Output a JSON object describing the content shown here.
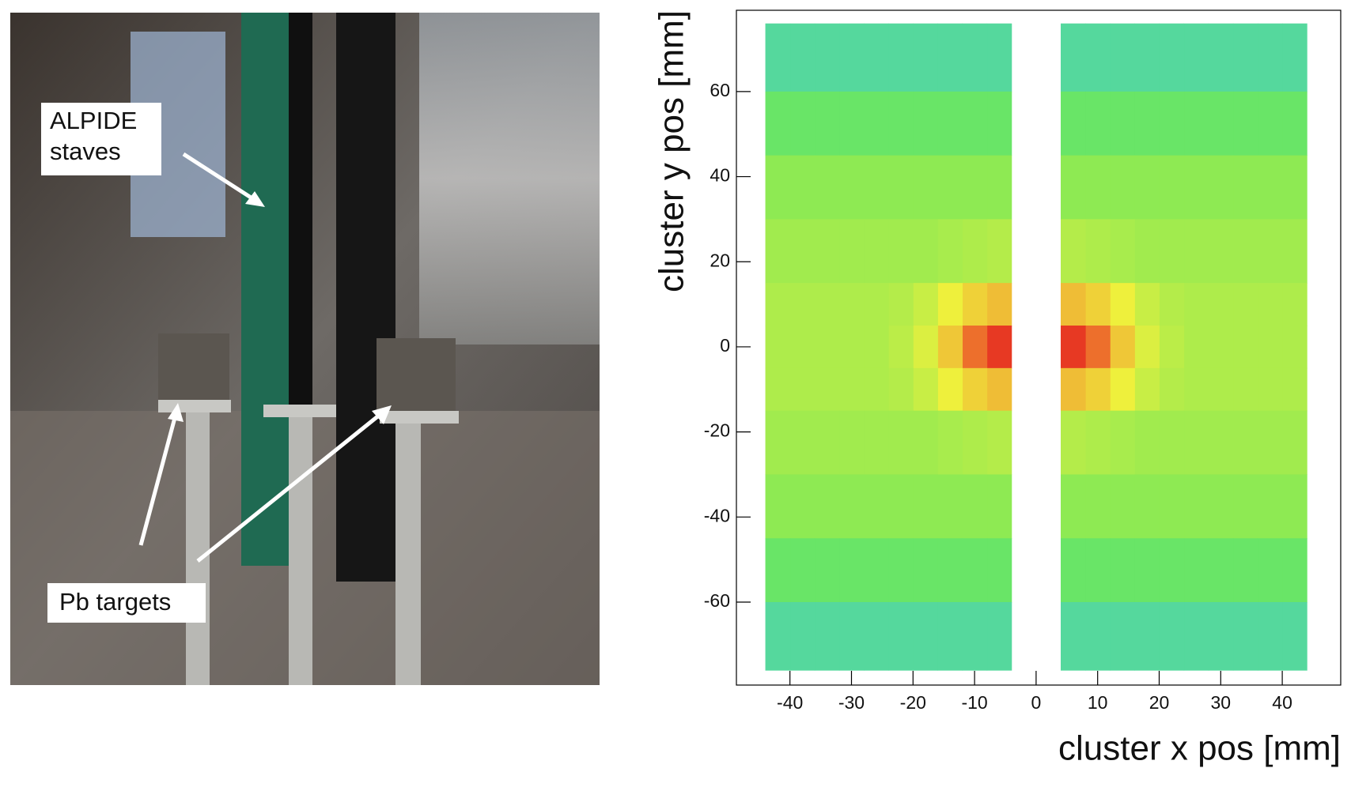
{
  "photo": {
    "labels": [
      {
        "lines": [
          "ALPIDE",
          "staves"
        ]
      },
      {
        "lines": [
          "Pb  targets"
        ]
      }
    ]
  },
  "chart_data": {
    "type": "heatmap",
    "xlabel": "cluster x pos [mm]",
    "ylabel": "cluster y pos [mm]",
    "xlim": [
      -48.7,
      49.5
    ],
    "ylim": [
      -79.5,
      79.1
    ],
    "xticks": [
      -40,
      -30,
      -20,
      -10,
      0,
      10,
      20,
      30,
      40
    ],
    "yticks": [
      -60,
      -40,
      -20,
      0,
      20,
      40,
      60
    ],
    "xbins": [
      -44,
      -40,
      -36,
      -32,
      -28,
      -24,
      -20,
      -16,
      -12,
      -8,
      -4,
      0,
      4,
      8,
      12,
      16,
      20,
      24,
      28,
      32,
      36,
      40,
      44
    ],
    "ybins": [
      -76,
      -60,
      -45,
      -30,
      -15,
      -5,
      5,
      15,
      30,
      45,
      60,
      76
    ],
    "zlim": [
      0,
      1
    ],
    "colormap": [
      "#2a3cd8",
      "#3cc8e0",
      "#6ee85a",
      "#eef03c",
      "#f08a30",
      "#e41e1e"
    ],
    "values": [
      [
        0.3,
        0.3,
        0.3,
        0.3,
        0.3,
        0.3,
        0.3,
        0.3,
        0.3,
        0.3,
        null,
        null,
        0.3,
        0.3,
        0.3,
        0.3,
        0.3,
        0.3,
        0.3,
        0.3,
        0.3,
        0.3
      ],
      [
        0.38,
        0.38,
        0.38,
        0.38,
        0.38,
        0.38,
        0.38,
        0.38,
        0.38,
        0.38,
        null,
        null,
        0.38,
        0.38,
        0.38,
        0.38,
        0.38,
        0.38,
        0.38,
        0.38,
        0.38,
        0.38
      ],
      [
        0.45,
        0.45,
        0.45,
        0.45,
        0.45,
        0.45,
        0.45,
        0.45,
        0.45,
        0.45,
        null,
        null,
        0.45,
        0.45,
        0.45,
        0.45,
        0.45,
        0.45,
        0.45,
        0.45,
        0.45,
        0.45
      ],
      [
        0.48,
        0.48,
        0.48,
        0.48,
        0.48,
        0.48,
        0.48,
        0.49,
        0.5,
        0.51,
        null,
        null,
        0.51,
        0.5,
        0.49,
        0.48,
        0.48,
        0.48,
        0.48,
        0.48,
        0.48,
        0.48
      ],
      [
        0.5,
        0.5,
        0.5,
        0.5,
        0.5,
        0.51,
        0.54,
        0.6,
        0.66,
        0.7,
        null,
        null,
        0.7,
        0.66,
        0.6,
        0.54,
        0.51,
        0.5,
        0.5,
        0.5,
        0.5,
        0.5
      ],
      [
        0.5,
        0.5,
        0.5,
        0.5,
        0.5,
        0.52,
        0.57,
        0.68,
        0.85,
        0.95,
        null,
        null,
        0.95,
        0.85,
        0.68,
        0.57,
        0.52,
        0.5,
        0.5,
        0.5,
        0.5,
        0.5
      ],
      [
        0.5,
        0.5,
        0.5,
        0.5,
        0.5,
        0.51,
        0.54,
        0.6,
        0.66,
        0.7,
        null,
        null,
        0.7,
        0.66,
        0.6,
        0.54,
        0.51,
        0.5,
        0.5,
        0.5,
        0.5,
        0.5
      ],
      [
        0.48,
        0.48,
        0.48,
        0.48,
        0.48,
        0.48,
        0.48,
        0.49,
        0.5,
        0.51,
        null,
        null,
        0.51,
        0.5,
        0.49,
        0.48,
        0.48,
        0.48,
        0.48,
        0.48,
        0.48,
        0.48
      ],
      [
        0.45,
        0.45,
        0.45,
        0.45,
        0.45,
        0.45,
        0.45,
        0.45,
        0.45,
        0.45,
        null,
        null,
        0.45,
        0.45,
        0.45,
        0.45,
        0.45,
        0.45,
        0.45,
        0.45,
        0.45,
        0.45
      ],
      [
        0.38,
        0.38,
        0.38,
        0.38,
        0.38,
        0.38,
        0.38,
        0.38,
        0.38,
        0.38,
        null,
        null,
        0.38,
        0.38,
        0.38,
        0.38,
        0.38,
        0.38,
        0.38,
        0.38,
        0.38,
        0.38
      ],
      [
        0.3,
        0.3,
        0.3,
        0.3,
        0.3,
        0.3,
        0.3,
        0.3,
        0.3,
        0.3,
        null,
        null,
        0.3,
        0.3,
        0.3,
        0.3,
        0.3,
        0.3,
        0.3,
        0.3,
        0.3,
        0.3
      ]
    ]
  }
}
